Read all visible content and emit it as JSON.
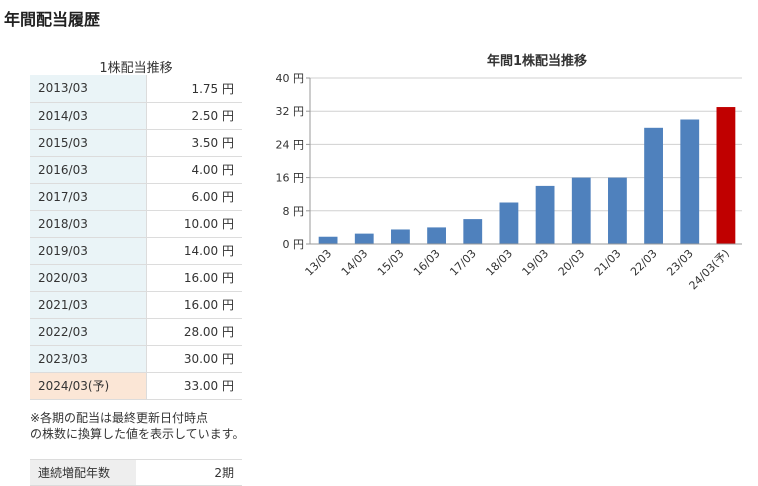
{
  "page_title": "年間配当履歴",
  "dividend_table": {
    "caption": "1株配当推移",
    "rows": [
      {
        "year": "2013/03",
        "value": "1.75 円"
      },
      {
        "year": "2014/03",
        "value": "2.50 円"
      },
      {
        "year": "2015/03",
        "value": "3.50 円"
      },
      {
        "year": "2016/03",
        "value": "4.00 円"
      },
      {
        "year": "2017/03",
        "value": "6.00 円"
      },
      {
        "year": "2018/03",
        "value": "10.00 円"
      },
      {
        "year": "2019/03",
        "value": "14.00 円"
      },
      {
        "year": "2020/03",
        "value": "16.00 円"
      },
      {
        "year": "2021/03",
        "value": "16.00 円"
      },
      {
        "year": "2022/03",
        "value": "28.00 円"
      },
      {
        "year": "2023/03",
        "value": "30.00 円"
      },
      {
        "year": "2024/03(予)",
        "value": "33.00 円"
      }
    ]
  },
  "note": {
    "line1": "※各期の配当は最終更新日付時点",
    "line2": "の株数に換算した値を表示しています。"
  },
  "increase": {
    "label": "連続増配年数",
    "value": "2期"
  },
  "colors": {
    "bar": "#4f81bd",
    "forecast_bar": "#c00000",
    "grid": "#d0d0d0"
  },
  "chart_data": {
    "type": "bar",
    "title": "年間1株配当推移",
    "categories": [
      "13/03",
      "14/03",
      "15/03",
      "16/03",
      "17/03",
      "18/03",
      "19/03",
      "20/03",
      "21/03",
      "22/03",
      "23/03",
      "24/03(予)"
    ],
    "values": [
      1.75,
      2.5,
      3.5,
      4.0,
      6.0,
      10.0,
      14.0,
      16.0,
      16.0,
      28.0,
      30.0,
      33.0
    ],
    "forecast_index": 11,
    "ylim": [
      0,
      40
    ],
    "yticks": [
      0,
      8,
      16,
      24,
      32,
      40
    ],
    "ytick_labels": [
      "0 円",
      "8 円",
      "16 円",
      "24 円",
      "32 円",
      "40 円"
    ],
    "xlabel": "",
    "ylabel": "",
    "grid": true,
    "legend": "none"
  }
}
